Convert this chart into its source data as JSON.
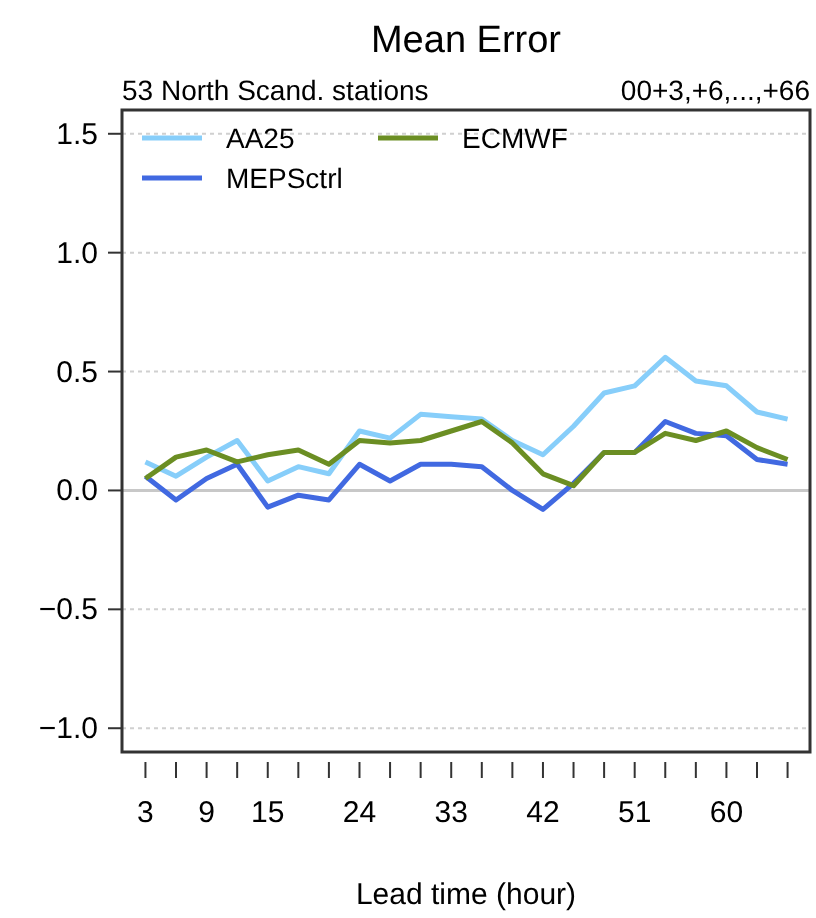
{
  "chart_data": {
    "type": "line",
    "title": "Mean Error",
    "subtitle": "53 North Scand. stations",
    "annotations": [
      "00+3,+6,...,+66"
    ],
    "xlabel": "Lead time (hour)",
    "x": [
      3,
      6,
      9,
      12,
      15,
      18,
      21,
      24,
      27,
      30,
      33,
      36,
      39,
      42,
      45,
      48,
      51,
      54,
      57,
      60,
      63,
      66
    ],
    "series": [
      {
        "name": "AA25",
        "color": "#87cefa",
        "values": [
          0.12,
          0.06,
          0.14,
          0.21,
          0.04,
          0.1,
          0.07,
          0.25,
          0.22,
          0.32,
          0.31,
          0.3,
          0.21,
          0.15,
          0.27,
          0.41,
          0.44,
          0.56,
          0.46,
          0.44,
          0.33,
          0.3
        ]
      },
      {
        "name": "MEPSctrl",
        "color": "#4169e1",
        "values": [
          0.06,
          -0.04,
          0.05,
          0.11,
          -0.07,
          -0.02,
          -0.04,
          0.11,
          0.04,
          0.11,
          0.11,
          0.1,
          0.0,
          -0.08,
          0.03,
          0.16,
          0.16,
          0.29,
          0.24,
          0.23,
          0.13,
          0.11
        ]
      },
      {
        "name": "ECMWF",
        "color": "#6b8e23",
        "values": [
          0.05,
          0.14,
          0.17,
          0.12,
          0.15,
          0.17,
          0.11,
          0.21,
          0.2,
          0.21,
          0.25,
          0.29,
          0.2,
          0.07,
          0.02,
          0.16,
          0.16,
          0.24,
          0.21,
          0.25,
          0.18,
          0.13
        ]
      }
    ],
    "xlim": [
      0.7,
      68.2
    ],
    "ylim": [
      -1.1,
      1.6
    ],
    "xticks": [
      3,
      {
        "value": 6,
        "label": null
      },
      9,
      {
        "value": 12,
        "label": null
      },
      15,
      {
        "value": 18,
        "label": null
      },
      {
        "value": 21,
        "label": null
      },
      24,
      {
        "value": 27,
        "label": null
      },
      {
        "value": 30,
        "label": null
      },
      33,
      {
        "value": 36,
        "label": null
      },
      {
        "value": 39,
        "label": null
      },
      42,
      {
        "value": 45,
        "label": null
      },
      {
        "value": 48,
        "label": null
      },
      51,
      {
        "value": 54,
        "label": null
      },
      {
        "value": 57,
        "label": null
      },
      60,
      {
        "value": 63,
        "label": null
      },
      {
        "value": 66,
        "label": null
      }
    ],
    "yticks": [
      {
        "value": -1,
        "label": "−1.0"
      },
      {
        "value": -0.5,
        "label": "−0.5"
      },
      {
        "value": 0,
        "label": "0.0"
      },
      0.5,
      {
        "value": 1,
        "label": "1.0"
      },
      1.5
    ],
    "grid": "y",
    "ref_lines": [
      {
        "axis": "y",
        "value": 0,
        "color": "#c8c8c8"
      }
    ],
    "legend": "top left",
    "marker": "none",
    "line_style": "solid"
  }
}
